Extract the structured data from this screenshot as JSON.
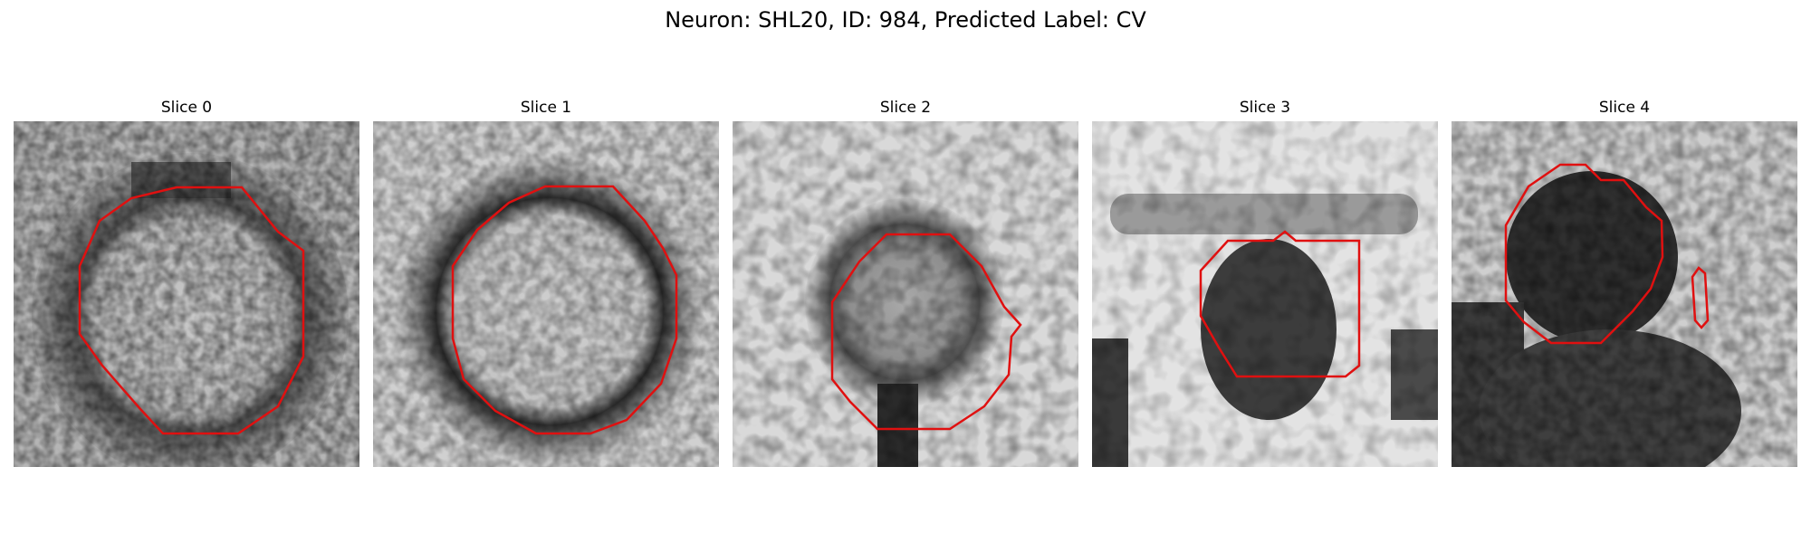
{
  "figure": {
    "title": "Neuron: SHL20, ID: 984, Predicted Label: CV"
  },
  "panels": [
    {
      "title": "Slice 0",
      "outline_color": "#e01010"
    },
    {
      "title": "Slice 1",
      "outline_color": "#e01010"
    },
    {
      "title": "Slice 2",
      "outline_color": "#e01010"
    },
    {
      "title": "Slice 3",
      "outline_color": "#e01010"
    },
    {
      "title": "Slice 4",
      "outline_color": "#e01010"
    }
  ]
}
